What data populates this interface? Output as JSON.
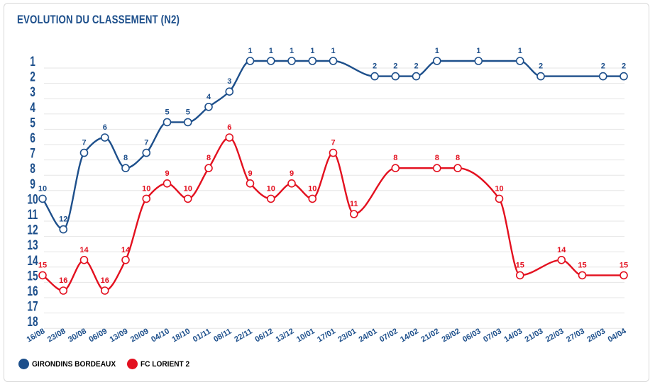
{
  "chart_data": {
    "type": "line",
    "title": "EVOLUTION DU CLASSEMENT (N2)",
    "xlabel": "",
    "ylabel": "",
    "ylim": [
      1,
      18
    ],
    "y_inverted": true,
    "yticks": [
      "1",
      "2",
      "3",
      "4",
      "5",
      "6",
      "7",
      "8",
      "9",
      "10",
      "11",
      "12",
      "13",
      "14",
      "15",
      "16",
      "17",
      "18"
    ],
    "grid": true,
    "legend_position": "bottom-left",
    "categories": [
      "16/08",
      "23/08",
      "30/08",
      "06/09",
      "13/09",
      "20/09",
      "04/10",
      "18/10",
      "01/11",
      "08/11",
      "22/11",
      "06/12",
      "13/12",
      "10/01",
      "17/01",
      "23/01",
      "24/01",
      "07/02",
      "14/02",
      "21/02",
      "28/02",
      "06/03",
      "07/03",
      "14/03",
      "21/03",
      "22/03",
      "27/03",
      "28/03",
      "04/04"
    ],
    "series": [
      {
        "name": "GIRONDINS BORDEAUX",
        "color": "#1d4f8b",
        "values": [
          10,
          12,
          7,
          6,
          8,
          7,
          5,
          5,
          4,
          3,
          1,
          1,
          1,
          1,
          1,
          null,
          2,
          2,
          2,
          1,
          null,
          1,
          null,
          1,
          2,
          null,
          null,
          2,
          2
        ]
      },
      {
        "name": "FC LORIENT 2",
        "color": "#e3101f",
        "values": [
          15,
          16,
          14,
          16,
          14,
          10,
          9,
          10,
          8,
          6,
          9,
          10,
          9,
          10,
          7,
          11,
          null,
          8,
          null,
          8,
          8,
          null,
          10,
          15,
          null,
          14,
          15,
          null,
          15
        ]
      }
    ]
  }
}
